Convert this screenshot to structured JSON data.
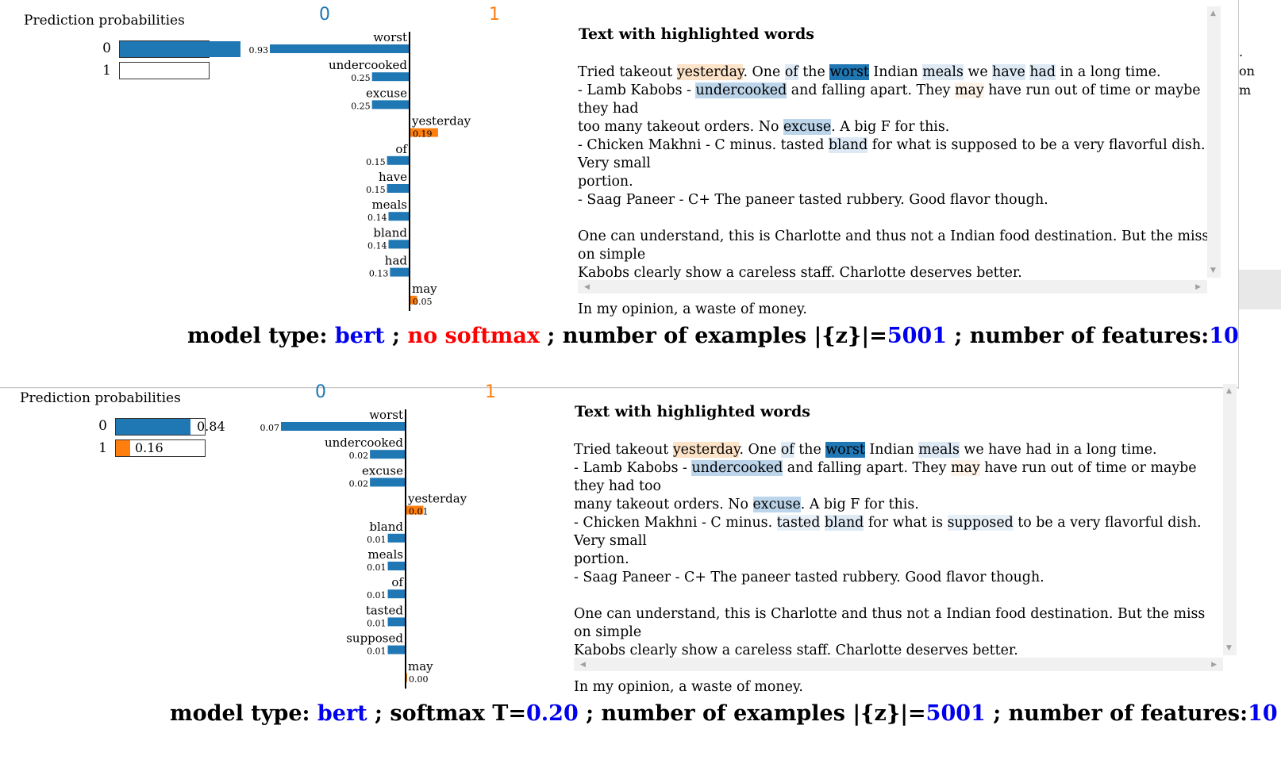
{
  "panels": [
    {
      "prediction_title": "Prediction probabilities",
      "classes": [
        "0",
        "1"
      ],
      "probabilities": [
        {
          "label": "0",
          "value": 1.0,
          "text": ""
        },
        {
          "label": "1",
          "value": 0.0,
          "text": ""
        }
      ],
      "class_headers": [
        "0",
        "1"
      ],
      "features": [
        {
          "word": "worst",
          "weight": -0.93,
          "label": "0.93"
        },
        {
          "word": "undercooked",
          "weight": -0.25,
          "label": "0.25"
        },
        {
          "word": "excuse",
          "weight": -0.25,
          "label": "0.25"
        },
        {
          "word": "yesterday",
          "weight": 0.19,
          "label": "0.19"
        },
        {
          "word": "of",
          "weight": -0.15,
          "label": "0.15"
        },
        {
          "word": "have",
          "weight": -0.15,
          "label": "0.15"
        },
        {
          "word": "meals",
          "weight": -0.14,
          "label": "0.14"
        },
        {
          "word": "bland",
          "weight": -0.14,
          "label": "0.14"
        },
        {
          "word": "had",
          "weight": -0.13,
          "label": "0.13"
        },
        {
          "word": "may",
          "weight": 0.05,
          "label": "0.05"
        }
      ],
      "text_title": "Text with highlighted words",
      "text_html": "Tried takeout <span class=\"hl-orange\">yesterday</span>. One <span class=\"hl-blue-light\">of</span> the <span class=\"hl-blue-dark\">worst</span> Indian <span class=\"hl-blue-light\">meals</span> we <span class=\"hl-blue-light\">have</span> <span class=\"hl-blue-light\">had</span> in a long time.\n- Lamb Kabobs - <span class=\"hl-blue-mid\">undercooked</span> and falling apart. They <span class=\"hl-orange-vlight\">may</span> have run out of time or maybe they had\ntoo many takeout orders. No <span class=\"hl-blue-mid\">excuse</span>. A big F for this.\n- Chicken Makhni - C minus. tasted <span class=\"hl-blue-light\">bland</span> for what is supposed to be a very flavorful dish. Very small\nportion.\n- Saag Paneer - C+ The paneer tasted rubbery. Good flavor though.\n\nOne can understand, this is Charlotte and thus not a Indian food destination. But the miss on simple\nKabobs clearly show a careless staff. Charlotte deserves better.\n\nIn my opinion, a waste of money.",
      "footer": [
        {
          "t": "model type: ",
          "c": ""
        },
        {
          "t": "bert",
          "c": "blue"
        },
        {
          "t": " ; ",
          "c": ""
        },
        {
          "t": "no softmax",
          "c": "red"
        },
        {
          "t": " ; number of examples |{z}|=",
          "c": ""
        },
        {
          "t": "5001",
          "c": "blue"
        },
        {
          "t": " ; number of features:",
          "c": ""
        },
        {
          "t": "10",
          "c": "blue"
        }
      ]
    },
    {
      "prediction_title": "Prediction probabilities",
      "classes": [
        "0",
        "1"
      ],
      "probabilities": [
        {
          "label": "0",
          "value": 0.84,
          "text": "0.84"
        },
        {
          "label": "1",
          "value": 0.16,
          "text": "0.16"
        }
      ],
      "class_headers": [
        "0",
        "1"
      ],
      "features": [
        {
          "word": "worst",
          "weight": -0.07,
          "label": "0.07"
        },
        {
          "word": "undercooked",
          "weight": -0.02,
          "label": "0.02"
        },
        {
          "word": "excuse",
          "weight": -0.02,
          "label": "0.02"
        },
        {
          "word": "yesterday",
          "weight": 0.01,
          "label": "0.01"
        },
        {
          "word": "bland",
          "weight": -0.01,
          "label": "0.01"
        },
        {
          "word": "meals",
          "weight": -0.01,
          "label": "0.01"
        },
        {
          "word": "of",
          "weight": -0.01,
          "label": "0.01"
        },
        {
          "word": "tasted",
          "weight": -0.01,
          "label": "0.01"
        },
        {
          "word": "supposed",
          "weight": -0.01,
          "label": "0.01"
        },
        {
          "word": "may",
          "weight": 0.0,
          "label": "0.00"
        }
      ],
      "text_title": "Text with highlighted words",
      "text_html": "Tried takeout <span class=\"hl-orange\">yesterday</span>. One <span class=\"hl-blue-light\">of</span> the <span class=\"hl-blue-dark\">worst</span> Indian <span class=\"hl-blue-light\">meals</span> we have had in a long time.\n- Lamb Kabobs - <span class=\"hl-blue-mid\">undercooked</span> and falling apart. They <span class=\"hl-orange-vlight\">may</span> have run out of time or maybe they had too\nmany takeout orders. No <span class=\"hl-blue-mid\">excuse</span>. A big F for this.\n- Chicken Makhni - C minus. <span class=\"hl-blue-vlight\">tasted</span> <span class=\"hl-blue-light\">bland</span> for what is <span class=\"hl-blue-vlight\">supposed</span> to be a very flavorful dish. Very small\nportion.\n- Saag Paneer - C+ The paneer tasted rubbery. Good flavor though.\n\nOne can understand, this is Charlotte and thus not a Indian food destination. But the miss on simple\nKabobs clearly show a careless staff. Charlotte deserves better.\n\nIn my opinion, a waste of money.",
      "footer": [
        {
          "t": "model type: ",
          "c": ""
        },
        {
          "t": "bert",
          "c": "blue"
        },
        {
          "t": " ; softmax T=",
          "c": ""
        },
        {
          "t": "0.20",
          "c": "blue"
        },
        {
          "t": " ; number of examples |{z}|=",
          "c": ""
        },
        {
          "t": "5001",
          "c": "blue"
        },
        {
          "t": " ; number of features:",
          "c": ""
        },
        {
          "t": "10",
          "c": "blue"
        }
      ]
    }
  ],
  "colors": {
    "class0": "#1f77b4",
    "class1": "#ff7f0e",
    "highlight_blue_strong": "#1f77b4",
    "highlight_orange": "#fde3c8",
    "emphasis_blue": "#0000ee",
    "emphasis_red": "#ff0000"
  },
  "icons": [
    "scroll-up-arrow-icon",
    "scroll-down-arrow-icon",
    "scroll-left-arrow-icon",
    "scroll-right-arrow-icon"
  ],
  "edge_fragments": [
    ".",
    "on",
    "m"
  ]
}
